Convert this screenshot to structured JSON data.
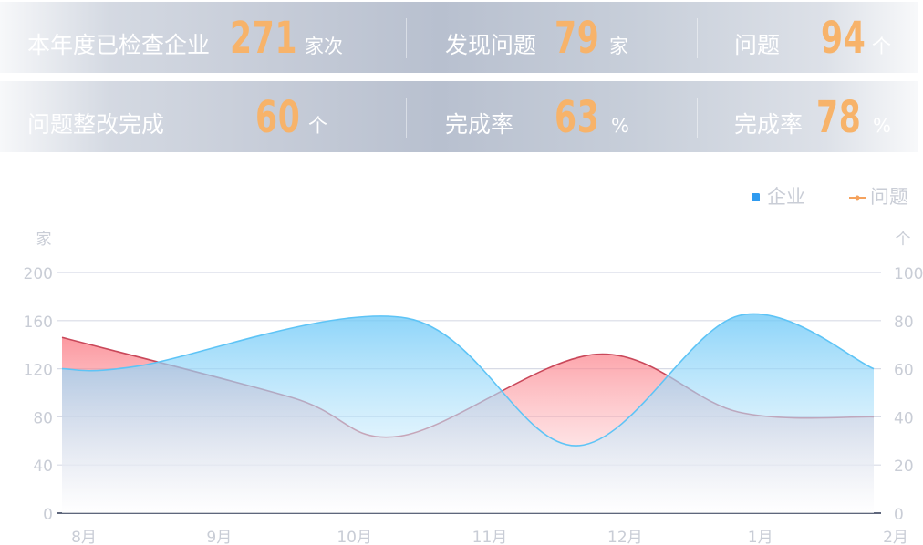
{
  "stats": [
    {
      "label": "本年度已检查企业",
      "value": "271",
      "unit": "家次"
    },
    {
      "label": "发现问题",
      "value": "79",
      "unit": "家"
    },
    {
      "label": "问题",
      "value": "94",
      "unit": "个"
    },
    {
      "label": "问题整改完成",
      "value": "60",
      "unit": "个"
    },
    {
      "label": "完成率",
      "value": "63",
      "unit": "%"
    },
    {
      "label": "完成率",
      "value": "78",
      "unit": "%"
    }
  ],
  "legend": {
    "enterprise": "企业",
    "issue": "问题"
  },
  "colors": {
    "enterprise": "#5ec4f6",
    "issue": "#f26d78",
    "value": "#f7b36a",
    "axis_text": "#c9cdd6",
    "grid": "#d8dbe6"
  },
  "chart_data": {
    "type": "area",
    "categories": [
      "8月",
      "9月",
      "10月",
      "11月",
      "12月",
      "1月",
      "2月"
    ],
    "y_left_unit": "家",
    "y_right_unit": "个",
    "y_left_ticks": [
      0,
      40,
      80,
      120,
      160,
      200
    ],
    "y_right_ticks": [
      0,
      20,
      40,
      60,
      80,
      100
    ],
    "ylim_left": [
      0,
      200
    ],
    "ylim_right": [
      0,
      100
    ],
    "grid": true,
    "legend_position": "top-right",
    "series": [
      {
        "name": "企业",
        "axis": "left",
        "values": [
          120,
          122,
          162,
          56,
          164,
          120
        ],
        "x": [
          0,
          0.55,
          2.55,
          3.8,
          5.0,
          6.0
        ]
      },
      {
        "name": "问题",
        "axis": "right",
        "values": [
          73,
          48,
          32,
          66,
          42,
          40
        ],
        "x": [
          0,
          1.7,
          2.5,
          3.95,
          5.0,
          6.0
        ]
      }
    ]
  }
}
